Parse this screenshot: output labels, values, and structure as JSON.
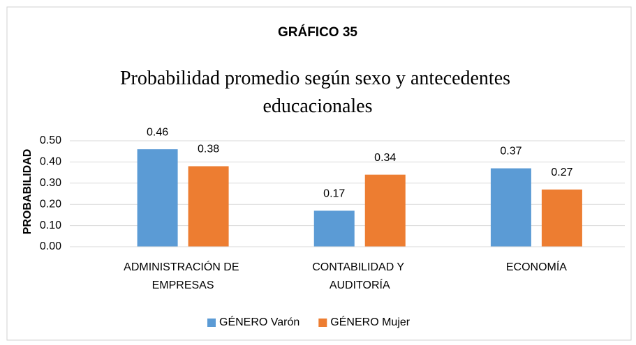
{
  "chart_data": {
    "type": "bar",
    "title": "GRÁFICO 35",
    "subtitle": "Probabilidad promedio según sexo y antecedentes educacionales",
    "y_label": "PROBABILIDAD",
    "categories": [
      "ADMINISTRACIÓN DE EMPRESAS",
      "CONTABILIDAD Y AUDITORÍA",
      "ECONOMÍA"
    ],
    "series": [
      {
        "name": "GÉNERO Varón",
        "color": "#5b9bd5",
        "values": [
          0.46,
          0.17,
          0.37
        ]
      },
      {
        "name": "GÉNERO Mujer",
        "color": "#ed7d31",
        "values": [
          0.38,
          0.34,
          0.27
        ]
      }
    ],
    "ylim": [
      0,
      0.5
    ],
    "yticks": [
      {
        "value": 0,
        "label": "0.00"
      },
      {
        "value": 0.1,
        "label": "0.10"
      },
      {
        "value": 0.2,
        "label": "0.20"
      },
      {
        "value": 0.3,
        "label": "0.30"
      },
      {
        "value": 0.4,
        "label": "0.40"
      },
      {
        "value": 0.5,
        "label": "0.50"
      }
    ],
    "grid": true,
    "legend": "bottom"
  }
}
